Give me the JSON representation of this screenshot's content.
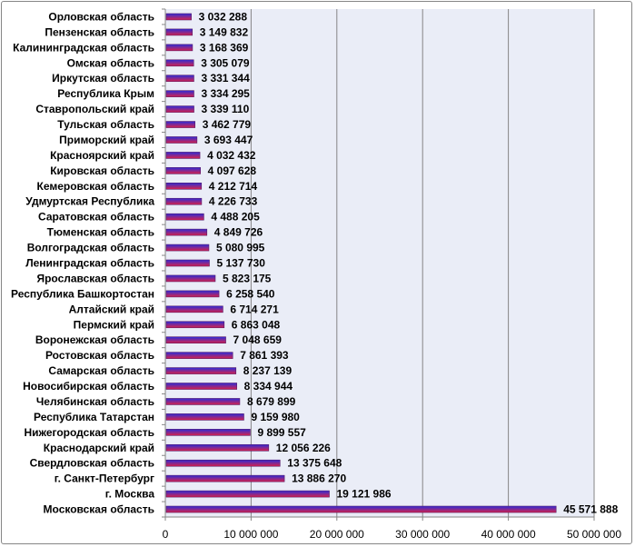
{
  "chart_data": {
    "type": "bar",
    "orientation": "horizontal",
    "categories": [
      "Орловская область",
      "Пензенская область",
      "Калининградская область",
      "Омская область",
      "Иркутская область",
      "Республика Крым",
      "Ставропольский край",
      "Тульская область",
      "Приморский край",
      "Красноярский край",
      "Кировская область",
      "Кемеровская область",
      "Удмуртская Республика",
      "Саратовская область",
      "Тюменская область",
      "Волгоградская область",
      "Ленинградская область",
      "Ярославская область",
      "Республика Башкортостан",
      "Алтайский край",
      "Пермский край",
      "Воронежская область",
      "Ростовская область",
      "Самарская область",
      "Новосибирская область",
      "Челябинская область",
      "Республика Татарстан",
      "Нижегородская область",
      "Краснодарский край",
      "Свердловская область",
      "г. Санкт-Петербург",
      "г. Москва",
      "Московская область"
    ],
    "values": [
      3032288,
      3149832,
      3168369,
      3305079,
      3331344,
      3334295,
      3339110,
      3462779,
      3693447,
      4032432,
      4097628,
      4212714,
      4226733,
      4488205,
      4849726,
      5080995,
      5137730,
      5823175,
      6258540,
      6714271,
      6863048,
      7048659,
      7861393,
      8237139,
      8334944,
      8679899,
      9159980,
      9899557,
      12056226,
      13375648,
      13886270,
      19121986,
      45571888
    ],
    "value_labels": [
      "3 032 288",
      "3 149 832",
      "3 168 369",
      "3 305 079",
      "3 331 344",
      "3 334 295",
      "3 339 110",
      "3 462 779",
      "3 693 447",
      "4 032 432",
      "4 097 628",
      "4 212 714",
      "4 226 733",
      "4 488 205",
      "4 849 726",
      "5 080 995",
      "5 137 730",
      "5 823 175",
      "6 258 540",
      "6 714 271",
      "6 863 048",
      "7 048 659",
      "7 861 393",
      "8 237 139",
      "8 334 944",
      "8 679 899",
      "9 159 980",
      "9 899 557",
      "12 056 226",
      "13 375 648",
      "13 886 270",
      "19 121 986",
      "45 571 888"
    ],
    "x_ticks": [
      0,
      10000000,
      20000000,
      30000000,
      40000000,
      50000000
    ],
    "x_tick_labels": [
      "0",
      "10 000 000",
      "20 000 000",
      "30 000 000",
      "40 000 000",
      "50 000 000"
    ],
    "xlim": [
      0,
      50000000
    ],
    "title": "",
    "xlabel": "",
    "ylabel": "",
    "grid": "vertical",
    "legend": "none",
    "colors": {
      "plot_background": "#eaedf7",
      "grid_line": "#868686",
      "bar_top": "#2b2bd6",
      "bar_bottom": "#d6204a",
      "bar_outline": "#5a1a6a"
    }
  }
}
